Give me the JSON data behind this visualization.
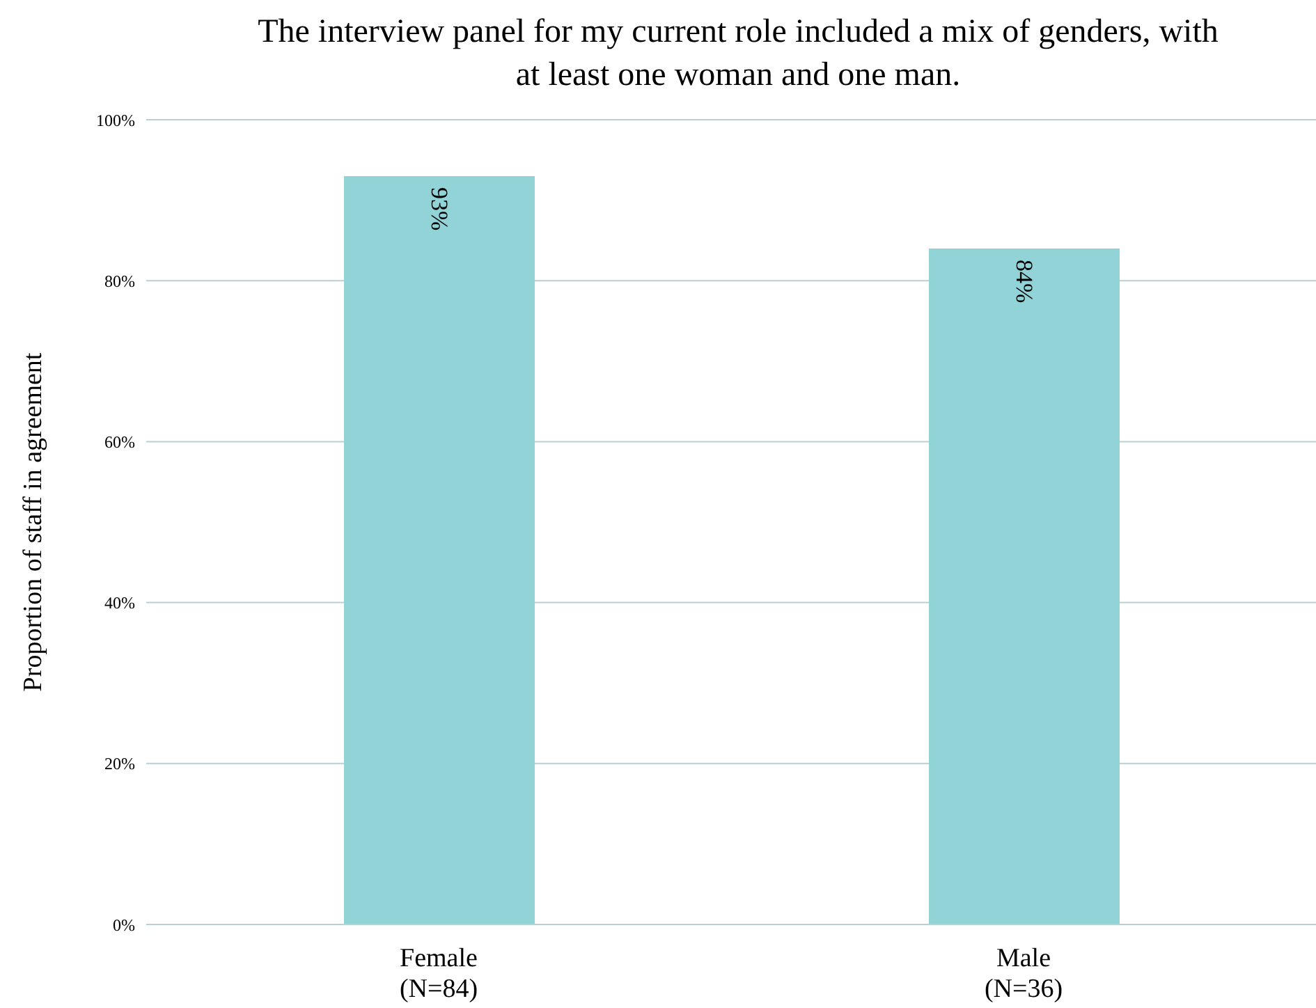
{
  "chart_data": {
    "type": "bar",
    "title": "The interview panel for my current role included a mix of genders, with at least one woman and one man.",
    "ylabel": "Proportion of staff in agreement",
    "categories": [
      "Female\n(N=84)",
      "Male\n(N=36)"
    ],
    "values": [
      93,
      84
    ],
    "color": "#92d3d8",
    "data_labels": true,
    "value_labels": [
      "93%",
      "84%"
    ],
    "ylim": [
      0,
      100
    ],
    "yticks": [
      {
        "value": 0,
        "label": "0%"
      },
      {
        "value": 20,
        "label": "20%"
      },
      {
        "value": 40,
        "label": "40%"
      },
      {
        "value": 60,
        "label": "60%"
      },
      {
        "value": 80,
        "label": "80%"
      },
      {
        "value": 100,
        "label": "100%"
      }
    ],
    "grid": "y"
  }
}
